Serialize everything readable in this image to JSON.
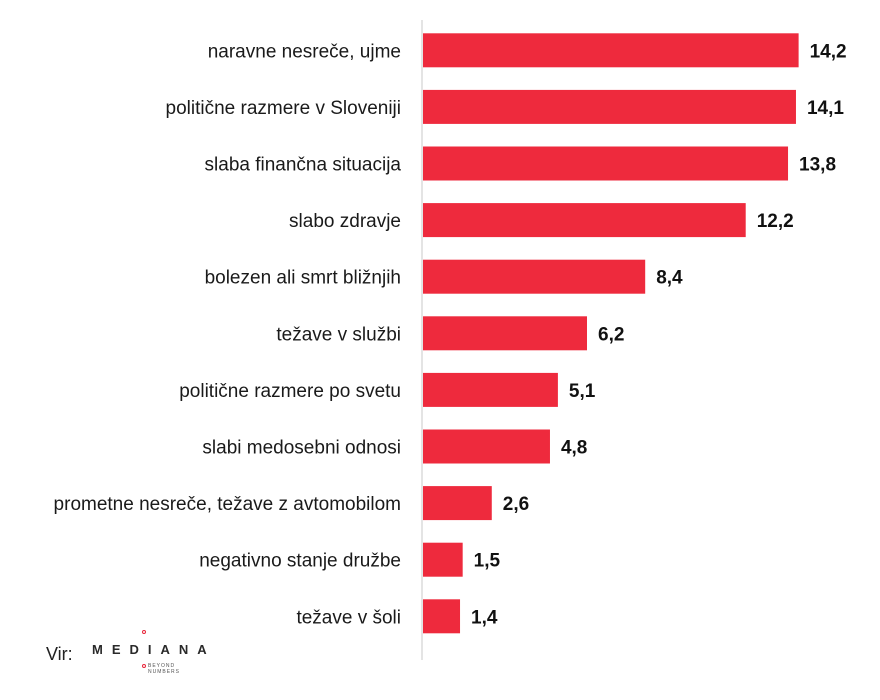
{
  "chart_data": {
    "type": "bar",
    "orientation": "horizontal",
    "title": "",
    "xlabel": "",
    "ylabel": "",
    "xlim": [
      0,
      15.5
    ],
    "grid": false,
    "legend": "none",
    "bar_color": "#ee2a3d",
    "categories": [
      "naravne nesreče, ujme",
      "politične razmere v Sloveniji",
      "slaba finančna situacija",
      "slabo zdravje",
      "bolezen ali smrt bližnjih",
      "težave v službi",
      "politične razmere po svetu",
      "slabi medosebni odnosi",
      "prometne nesreče, težave z avtomobilom",
      "negativno stanje družbe",
      "težave v šoli"
    ],
    "values": [
      14.2,
      14.1,
      13.8,
      12.2,
      8.4,
      6.2,
      5.1,
      4.8,
      2.6,
      1.5,
      1.4
    ],
    "value_labels": [
      "14,2",
      "14,1",
      "13,8",
      "12,2",
      "8,4",
      "6,2",
      "5,1",
      "4,8",
      "2,6",
      "1,5",
      "1,4"
    ]
  },
  "source": {
    "label": "Vir:",
    "logo_text": "MEDIANA",
    "logo_tagline": "BEYOND\nNUMBERS"
  }
}
